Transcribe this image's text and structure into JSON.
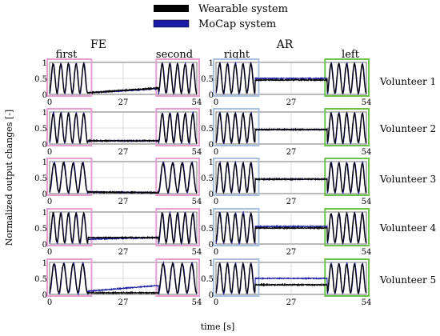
{
  "chart_data": {
    "type": "line",
    "title": "",
    "legend": {
      "placement": "top-center",
      "entries": [
        {
          "label": "Wearable system",
          "color": "#000000"
        },
        {
          "label": "MoCap system",
          "color": "#1a1aa6"
        }
      ]
    },
    "ylabel": "Normalized output changes [-]",
    "xlabel": "time [s]",
    "columns": [
      {
        "title": "FE",
        "sublabels": [
          "first",
          "second"
        ]
      },
      {
        "title": "AR",
        "sublabels": [
          "right",
          "left"
        ]
      }
    ],
    "rows": [
      "Volunteer 1",
      "Volunteer 2",
      "Volunteer 3",
      "Volunteer 4",
      "Volunteer 5"
    ],
    "xlim": [
      0,
      54
    ],
    "ylim": [
      0,
      1
    ],
    "xticks": [
      "0",
      "27",
      "54"
    ],
    "yticks": [
      "0",
      "0.5",
      "1"
    ],
    "grid": true,
    "highlight_windows": [
      {
        "column": "FE",
        "label": "first",
        "x": [
          0,
          14.5
        ],
        "color": "#e79fd2"
      },
      {
        "column": "FE",
        "label": "second",
        "x": [
          40,
          54
        ],
        "color": "#e79fd2"
      },
      {
        "column": "AR",
        "label": "right",
        "x": [
          0,
          14.5
        ],
        "color": "#a9c1df"
      },
      {
        "column": "AR",
        "label": "left",
        "x": [
          40,
          54
        ],
        "color": "#6cc24a"
      }
    ],
    "series_colors": {
      "Wearable system": "#000000",
      "MoCap system": "#1a1aa6"
    },
    "panels": [
      {
        "row": "Volunteer 1",
        "column": "FE",
        "wave_periods": 5,
        "rest_wearable": [
          0.05,
          0.2
        ],
        "rest_mocap": [
          0.05,
          0.18
        ]
      },
      {
        "row": "Volunteer 1",
        "column": "AR",
        "wave_periods": 5,
        "rest_wearable": [
          0.45,
          0.45
        ],
        "rest_mocap": [
          0.5,
          0.5
        ]
      },
      {
        "row": "Volunteer 2",
        "column": "FE",
        "wave_periods": 5,
        "rest_wearable": [
          0.1,
          0.1
        ],
        "rest_mocap": [
          0.1,
          0.1
        ]
      },
      {
        "row": "Volunteer 2",
        "column": "AR",
        "wave_periods": 5,
        "rest_wearable": [
          0.45,
          0.45
        ],
        "rest_mocap": [
          0.45,
          0.45
        ]
      },
      {
        "row": "Volunteer 3",
        "column": "FE",
        "wave_periods": 4,
        "rest_wearable": [
          0.05,
          0.03
        ],
        "rest_mocap": [
          0.05,
          0.03
        ]
      },
      {
        "row": "Volunteer 3",
        "column": "AR",
        "wave_periods": 5,
        "rest_wearable": [
          0.45,
          0.45
        ],
        "rest_mocap": [
          0.45,
          0.45
        ]
      },
      {
        "row": "Volunteer 4",
        "column": "FE",
        "wave_periods": 5,
        "rest_wearable": [
          0.2,
          0.2
        ],
        "rest_mocap": [
          0.15,
          0.2
        ]
      },
      {
        "row": "Volunteer 4",
        "column": "AR",
        "wave_periods": 5,
        "rest_wearable": [
          0.5,
          0.5
        ],
        "rest_mocap": [
          0.55,
          0.55
        ]
      },
      {
        "row": "Volunteer 5",
        "column": "FE",
        "wave_periods": 4,
        "rest_wearable": [
          0.05,
          0.05
        ],
        "rest_mocap": [
          0.1,
          0.28
        ]
      },
      {
        "row": "Volunteer 5",
        "column": "AR",
        "wave_periods": 5,
        "rest_wearable": [
          0.3,
          0.3
        ],
        "rest_mocap": [
          0.5,
          0.5
        ]
      }
    ]
  }
}
